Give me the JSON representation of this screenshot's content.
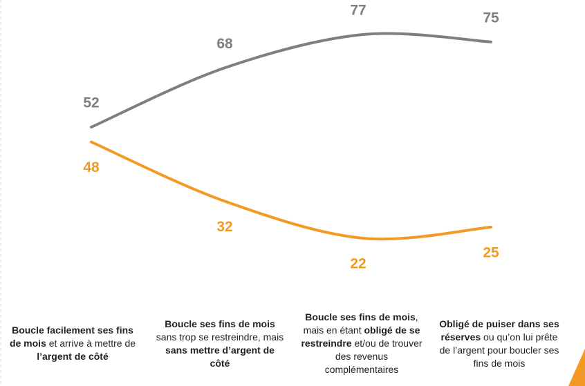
{
  "chart_data": {
    "type": "line",
    "categories": [
      [
        {
          "text": "Boucle facilement ses fins de mois",
          "bold": true
        },
        {
          "text": " et arrive à mettre de ",
          "bold": false
        },
        {
          "text": "l’argent de côté",
          "bold": true
        }
      ],
      [
        {
          "text": "Boucle ses fins de mois",
          "bold": true
        },
        {
          "text": " sans trop se restreindre, mais ",
          "bold": false
        },
        {
          "text": "sans mettre d’argent de côté",
          "bold": true
        }
      ],
      [
        {
          "text": "Boucle ses fins de mois",
          "bold": true
        },
        {
          "text": ", mais en étant ",
          "bold": false
        },
        {
          "text": "obligé de se restreindre",
          "bold": true
        },
        {
          "text": " et/ou de trouver des revenus complémentaires",
          "bold": false
        }
      ],
      [
        {
          "text": "Obligé de puiser dans ses réserves",
          "bold": true
        },
        {
          "text": " ou qu’on lui prête de l’argent pour boucler ses fins de mois",
          "bold": false
        }
      ]
    ],
    "series": [
      {
        "color": "#7f7f7f",
        "values": [
          52,
          68,
          77,
          75
        ]
      },
      {
        "color": "#f39a26",
        "values": [
          48,
          32,
          22,
          25
        ]
      }
    ],
    "smooth": true,
    "grid": false
  }
}
